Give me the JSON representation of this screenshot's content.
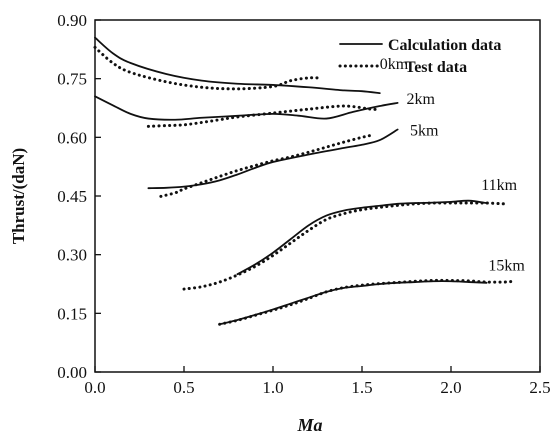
{
  "chart_data": {
    "type": "line",
    "title": "",
    "xlabel": "Ma",
    "ylabel": "Thrust/(daN)",
    "xlim": [
      0.0,
      2.5
    ],
    "ylim": [
      0.0,
      0.9
    ],
    "xticks": [
      "0.0",
      "0.5",
      "1.0",
      "1.5",
      "2.0",
      "2.5"
    ],
    "yticks": [
      "0.00",
      "0.15",
      "0.30",
      "0.45",
      "0.60",
      "0.75",
      "0.90"
    ],
    "grid": false,
    "legend_position": "top-right",
    "legend": [
      {
        "label": "Calculation data",
        "style": "solid"
      },
      {
        "label": "Test data",
        "style": "dotted"
      }
    ],
    "annotations": [
      {
        "text": "0km",
        "x": 1.6,
        "y": 0.775
      },
      {
        "text": "2km",
        "x": 1.75,
        "y": 0.685
      },
      {
        "text": "5km",
        "x": 1.77,
        "y": 0.605
      },
      {
        "text": "11km",
        "x": 2.17,
        "y": 0.465
      },
      {
        "text": "15km",
        "x": 2.21,
        "y": 0.26
      }
    ],
    "series": [
      {
        "altitude": "0km",
        "type": "calculation",
        "x": [
          0.0,
          0.1,
          0.2,
          0.4,
          0.6,
          0.8,
          1.0,
          1.2,
          1.4,
          1.5,
          1.6
        ],
        "y": [
          0.855,
          0.815,
          0.79,
          0.762,
          0.745,
          0.737,
          0.734,
          0.728,
          0.72,
          0.718,
          0.713
        ]
      },
      {
        "altitude": "0km",
        "type": "test",
        "x": [
          0.0,
          0.1,
          0.2,
          0.4,
          0.6,
          0.8,
          1.0,
          1.1,
          1.2,
          1.25
        ],
        "y": [
          0.83,
          0.79,
          0.766,
          0.742,
          0.728,
          0.724,
          0.73,
          0.745,
          0.752,
          0.752
        ]
      },
      {
        "altitude": "2km",
        "type": "calculation",
        "x": [
          0.0,
          0.1,
          0.2,
          0.3,
          0.45,
          0.6,
          0.8,
          1.0,
          1.15,
          1.3,
          1.45,
          1.6,
          1.7
        ],
        "y": [
          0.705,
          0.682,
          0.66,
          0.648,
          0.645,
          0.65,
          0.655,
          0.66,
          0.655,
          0.648,
          0.665,
          0.68,
          0.688
        ]
      },
      {
        "altitude": "2km",
        "type": "test",
        "x": [
          0.3,
          0.4,
          0.5,
          0.6,
          0.7,
          0.8,
          1.0,
          1.2,
          1.4,
          1.55,
          1.6
        ],
        "y": [
          0.628,
          0.63,
          0.632,
          0.638,
          0.645,
          0.652,
          0.662,
          0.672,
          0.68,
          0.672,
          0.672
        ]
      },
      {
        "altitude": "5km",
        "type": "calculation",
        "x": [
          0.3,
          0.4,
          0.5,
          0.6,
          0.7,
          0.8,
          0.9,
          1.0,
          1.2,
          1.4,
          1.5,
          1.6,
          1.7
        ],
        "y": [
          0.47,
          0.471,
          0.474,
          0.48,
          0.49,
          0.505,
          0.522,
          0.537,
          0.556,
          0.573,
          0.581,
          0.593,
          0.62
        ]
      },
      {
        "altitude": "5km",
        "type": "test",
        "x": [
          0.37,
          0.45,
          0.5,
          0.6,
          0.7,
          0.8,
          0.9,
          1.0,
          1.1,
          1.2,
          1.3,
          1.4,
          1.5,
          1.55
        ],
        "y": [
          0.449,
          0.458,
          0.468,
          0.484,
          0.5,
          0.515,
          0.528,
          0.54,
          0.55,
          0.562,
          0.575,
          0.588,
          0.6,
          0.605
        ]
      },
      {
        "altitude": "11km",
        "type": "calculation",
        "x": [
          0.8,
          0.9,
          1.0,
          1.1,
          1.2,
          1.3,
          1.4,
          1.5,
          1.6,
          1.7,
          1.8,
          1.9,
          2.0,
          2.1,
          2.2
        ],
        "y": [
          0.25,
          0.275,
          0.305,
          0.34,
          0.375,
          0.4,
          0.413,
          0.42,
          0.425,
          0.43,
          0.432,
          0.433,
          0.435,
          0.438,
          0.432
        ]
      },
      {
        "altitude": "11km",
        "type": "test",
        "x": [
          0.5,
          0.6,
          0.7,
          0.8,
          0.9,
          1.0,
          1.1,
          1.2,
          1.3,
          1.4,
          1.5,
          1.6,
          1.7,
          1.8,
          1.9,
          2.0,
          2.1,
          2.2,
          2.3
        ],
        "y": [
          0.212,
          0.218,
          0.23,
          0.248,
          0.27,
          0.298,
          0.33,
          0.362,
          0.39,
          0.405,
          0.415,
          0.421,
          0.426,
          0.43,
          0.432,
          0.432,
          0.432,
          0.432,
          0.43
        ]
      },
      {
        "altitude": "15km",
        "type": "calculation",
        "x": [
          0.7,
          0.8,
          0.9,
          1.0,
          1.1,
          1.2,
          1.3,
          1.4,
          1.5,
          1.6,
          1.7,
          1.8,
          1.9,
          2.0,
          2.1,
          2.2
        ],
        "y": [
          0.122,
          0.133,
          0.146,
          0.16,
          0.175,
          0.19,
          0.205,
          0.215,
          0.22,
          0.225,
          0.228,
          0.23,
          0.232,
          0.232,
          0.23,
          0.228
        ]
      },
      {
        "altitude": "15km",
        "type": "test",
        "x": [
          0.7,
          0.8,
          0.9,
          1.0,
          1.1,
          1.2,
          1.3,
          1.4,
          1.5,
          1.6,
          1.7,
          1.8,
          1.9,
          2.0,
          2.1,
          2.2,
          2.3,
          2.35
        ],
        "y": [
          0.122,
          0.132,
          0.145,
          0.158,
          0.172,
          0.188,
          0.205,
          0.216,
          0.222,
          0.226,
          0.229,
          0.232,
          0.234,
          0.234,
          0.233,
          0.23,
          0.23,
          0.232
        ]
      }
    ]
  }
}
